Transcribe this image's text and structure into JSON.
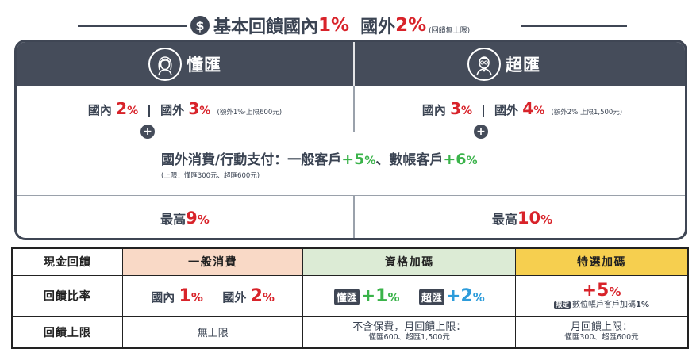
{
  "header": {
    "title": "基本回饋國內",
    "domestic_pct": "1%",
    "overseas_label": "國外",
    "overseas_pct": "2%",
    "note": "(回饋無上限)",
    "dollar_icon": "$"
  },
  "plans": {
    "left": {
      "name": "懂匯",
      "avatar_icon": "woman-avatar-icon"
    },
    "right": {
      "name": "超匯",
      "avatar_icon": "man-avatar-icon"
    }
  },
  "base_rates": {
    "left": {
      "domestic_label": "國內",
      "domestic_value": "2",
      "overseas_label": "國外",
      "overseas_value": "3",
      "pct": "%",
      "note": "(額外1%‧上限600元)"
    },
    "right": {
      "domestic_label": "國內",
      "domestic_value": "3",
      "overseas_label": "國外",
      "overseas_value": "4",
      "pct": "%",
      "note": "(額外2%‧上限1,500元)"
    }
  },
  "plus_symbol": "+",
  "overseas_bonus": {
    "text": "國外消費/行動支付：一般客戶",
    "general_value": "+5",
    "separator": "、數帳客戶",
    "digital_value": "+6",
    "pct": "%",
    "note": "(上限：懂匯300元、超匯600元)"
  },
  "max": {
    "left": {
      "label": "最高",
      "value": "9",
      "pct": "%"
    },
    "right": {
      "label": "最高",
      "value": "10",
      "pct": "%"
    }
  },
  "table": {
    "headers": [
      "現金回饋",
      "一般消費",
      "資格加碼",
      "特選加碼"
    ],
    "row1_label": "回饋比率",
    "general": {
      "domestic_label": "國內",
      "domestic_value": "1",
      "overseas_label": "國外",
      "overseas_value": "2",
      "pct": "%"
    },
    "qualified": {
      "badge1": "懂匯",
      "value1": "+1",
      "badge2": "超匯",
      "value2": "+2",
      "pct": "%"
    },
    "special": {
      "value": "+5",
      "pct": "%",
      "badge": "限定",
      "text": "數位帳戶客戶加碼",
      "value2": "1%"
    },
    "row2_label": "回饋上限",
    "cap_general": "無上限",
    "cap_qualified_line1": "不含保費，月回饋上限：",
    "cap_qualified_line2": "懂匯600、超匯1,500元",
    "cap_special_line1": "月回饋上限：",
    "cap_special_line2": "懂匯300、超匯600元"
  },
  "colors": {
    "dark": "#454c5a",
    "red": "#d8232a",
    "green": "#3ab34a",
    "blue": "#2d9cdb",
    "peach": "#f9d9c6",
    "mint": "#dcebd5",
    "gold": "#f6cf4f"
  }
}
